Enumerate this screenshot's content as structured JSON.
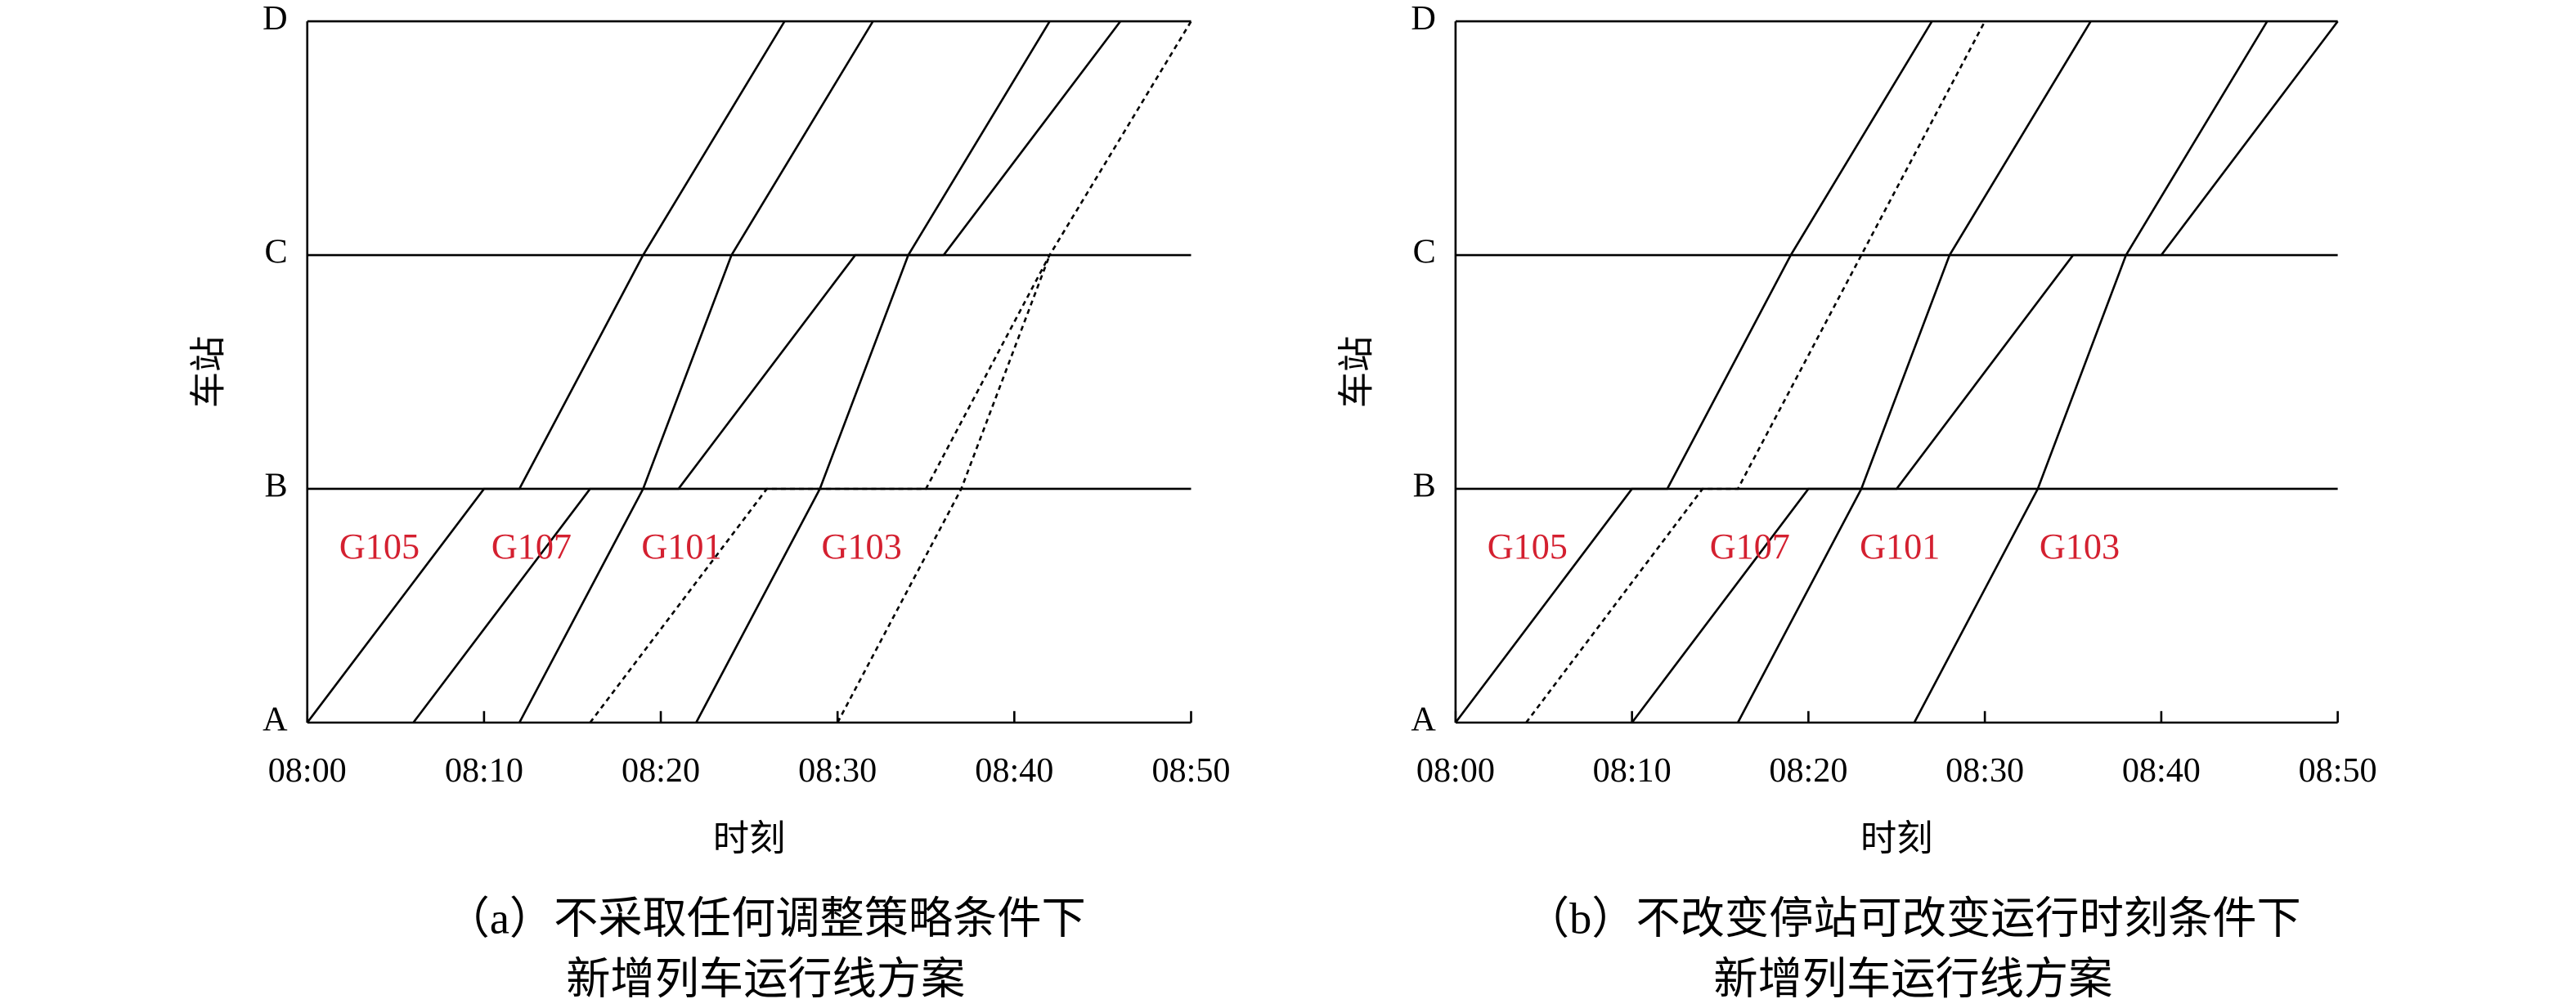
{
  "chart_data": [
    {
      "type": "line",
      "xlabel": "时刻",
      "ylabel": "车站",
      "caption": [
        "（a）不采取任何调整策略条件下",
        "新增列车运行线方案"
      ],
      "xlim": [
        0,
        50
      ],
      "ylim": [
        0,
        3
      ],
      "xticks": [
        {
          "value": 0,
          "label": "08:00"
        },
        {
          "value": 10,
          "label": "08:10"
        },
        {
          "value": 20,
          "label": "08:20"
        },
        {
          "value": 30,
          "label": "08:30"
        },
        {
          "value": 40,
          "label": "08:40"
        },
        {
          "value": 50,
          "label": "08:50"
        }
      ],
      "yticks": [
        {
          "value": 0,
          "label": "A"
        },
        {
          "value": 1,
          "label": "B"
        },
        {
          "value": 2,
          "label": "C"
        },
        {
          "value": 3,
          "label": "D"
        }
      ],
      "series": [
        {
          "name": "G105",
          "color": "#000000",
          "dashed": false,
          "x": [
            0,
            10,
            12,
            19,
            27
          ],
          "values": [
            0,
            1,
            1,
            2,
            3
          ]
        },
        {
          "name": "G107",
          "color": "#000000",
          "dashed": false,
          "x": [
            6,
            16,
            21,
            31,
            36,
            46
          ],
          "values": [
            0,
            1,
            1,
            2,
            2,
            3
          ]
        },
        {
          "name": "G101",
          "color": "#000000",
          "dashed": false,
          "x": [
            12,
            19,
            24,
            32
          ],
          "values": [
            0,
            1,
            2,
            3
          ]
        },
        {
          "name": "G103",
          "color": "#000000",
          "dashed": false,
          "x": [
            22,
            29,
            34,
            42
          ],
          "values": [
            0,
            1,
            2,
            3
          ]
        },
        {
          "color": "#000000",
          "dashed": true,
          "x": [
            16,
            26,
            35,
            42,
            50
          ],
          "values": [
            0,
            1,
            1,
            2,
            3
          ]
        },
        {
          "color": "#000000",
          "dashed": true,
          "x": [
            30,
            37,
            42
          ],
          "values": [
            0,
            1,
            2
          ]
        }
      ]
    },
    {
      "type": "line",
      "xlabel": "时刻",
      "ylabel": "车站",
      "caption": [
        "（b）不改变停站可改变运行时刻条件下",
        "新增列车运行线方案"
      ],
      "xlim": [
        0,
        50
      ],
      "ylim": [
        0,
        3
      ],
      "xticks": [
        {
          "value": 0,
          "label": "08:00"
        },
        {
          "value": 10,
          "label": "08:10"
        },
        {
          "value": 20,
          "label": "08:20"
        },
        {
          "value": 30,
          "label": "08:30"
        },
        {
          "value": 40,
          "label": "08:40"
        },
        {
          "value": 50,
          "label": "08:50"
        }
      ],
      "yticks": [
        {
          "value": 0,
          "label": "A"
        },
        {
          "value": 1,
          "label": "B"
        },
        {
          "value": 2,
          "label": "C"
        },
        {
          "value": 3,
          "label": "D"
        }
      ],
      "series": [
        {
          "name": "G105",
          "color": "#000000",
          "dashed": false,
          "x": [
            0,
            10,
            12,
            19,
            27
          ],
          "values": [
            0,
            1,
            1,
            2,
            3
          ]
        },
        {
          "color": "#000000",
          "dashed": true,
          "x": [
            4,
            14,
            16,
            23,
            30
          ],
          "values": [
            0,
            1,
            1,
            2,
            3
          ]
        },
        {
          "name": "G107",
          "color": "#000000",
          "dashed": false,
          "x": [
            10,
            20,
            25,
            35,
            40,
            50
          ],
          "values": [
            0,
            1,
            1,
            2,
            2,
            3
          ]
        },
        {
          "name": "G101",
          "color": "#000000",
          "dashed": false,
          "x": [
            16,
            23,
            28,
            36
          ],
          "values": [
            0,
            1,
            2,
            3
          ]
        },
        {
          "name": "G103",
          "color": "#000000",
          "dashed": false,
          "x": [
            26,
            33,
            38,
            46
          ],
          "values": [
            0,
            1,
            2,
            3
          ]
        }
      ]
    }
  ]
}
